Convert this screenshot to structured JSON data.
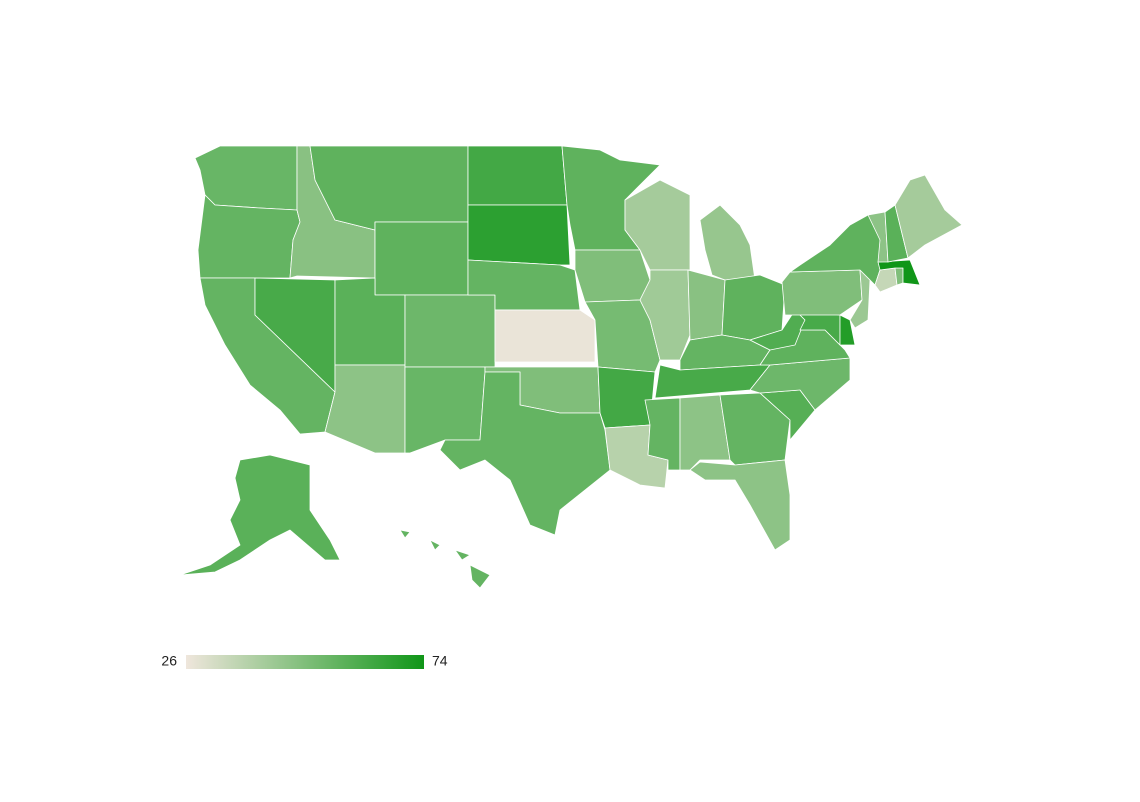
{
  "chart_data": {
    "type": "choropleth",
    "values": [
      55,
      56,
      56,
      62,
      48,
      57,
      57,
      58,
      47,
      54,
      55,
      63,
      68,
      56,
      27,
      50,
      56,
      57,
      50,
      52,
      63,
      38,
      42,
      43,
      45,
      48,
      57,
      56,
      62,
      56,
      47,
      56,
      47,
      59,
      54,
      57,
      60,
      62,
      70,
      50,
      44,
      57,
      35,
      50,
      74,
      47,
      58,
      42,
      58,
      56
    ],
    "colorlim": [
      26,
      74
    ],
    "colors": [
      "#efe6dc",
      "#109618"
    ]
  }
}
